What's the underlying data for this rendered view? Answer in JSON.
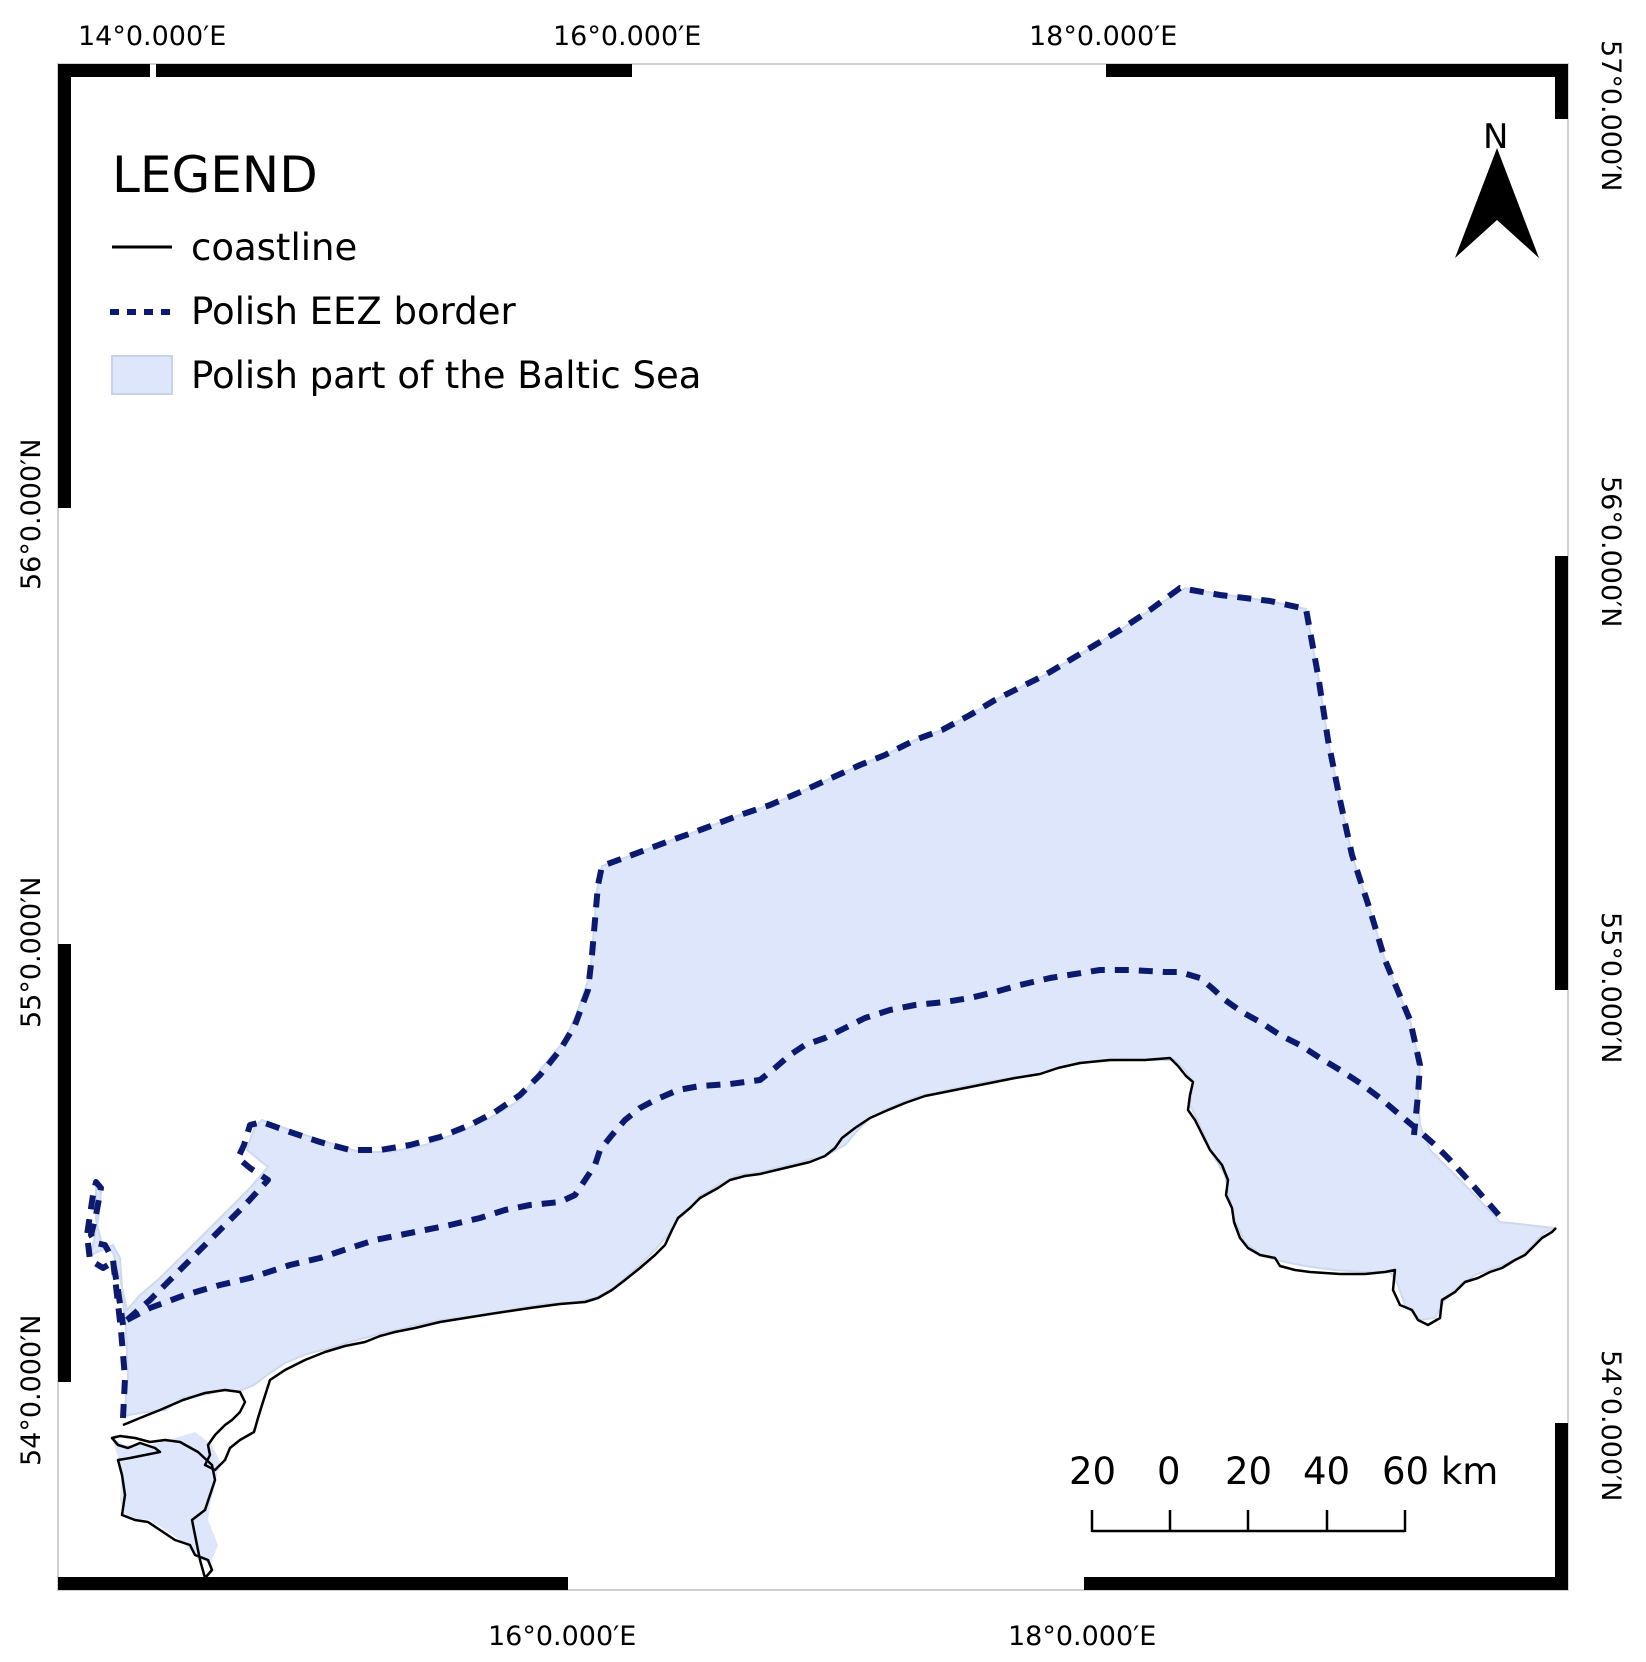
{
  "map": {
    "legend": {
      "title": "LEGEND",
      "items": [
        {
          "label": "coastline",
          "symbol": "solid-line",
          "color": "#000000"
        },
        {
          "label": "Polish EEZ border",
          "symbol": "dashed-line",
          "color": "#0b1a6e"
        },
        {
          "label": "Polish part of the Baltic Sea",
          "symbol": "fill",
          "color": "#dde6fb"
        }
      ]
    },
    "north_arrow": {
      "label": "N",
      "icon": "north-arrow-icon"
    },
    "scale_bar": {
      "labels": [
        "20",
        "0",
        "20",
        "40",
        "60 km"
      ]
    },
    "top_longitudes": [
      "14°0.000′E",
      "16°0.000′E",
      "18°0.000′E"
    ],
    "bottom_longitudes": [
      "16°0.000′E",
      "18°0.000′E"
    ],
    "left_latitudes": [
      "56°0.000′N",
      "55°0.000′N",
      "54°0.000′N"
    ],
    "right_latitudes": [
      "57°0.000′N",
      "56°0.000′N",
      "55°0.000′N",
      "54°0.000′N"
    ],
    "colors": {
      "sea_fill": "#dde6fb",
      "eez_border": "#0b1a6e",
      "coastline": "#000000",
      "frame": "#000000"
    }
  }
}
